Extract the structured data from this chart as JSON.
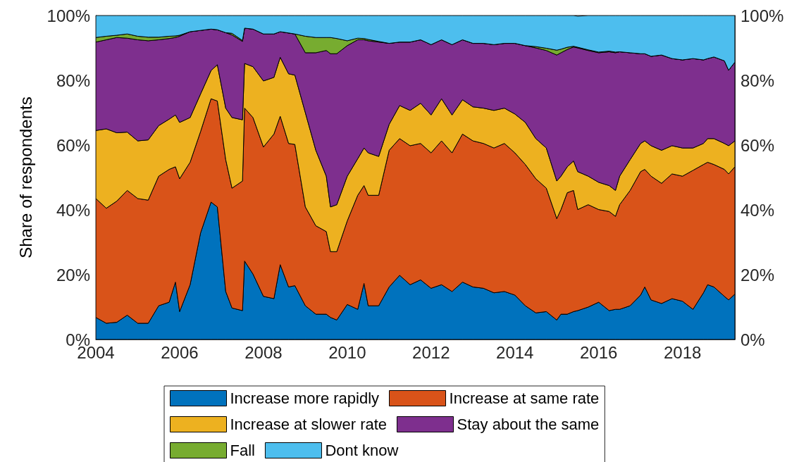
{
  "chart_data": {
    "type": "area",
    "stacked": true,
    "ylabel": "Share of respondents",
    "x": [
      2004.0,
      2004.25,
      2004.5,
      2004.75,
      2005.0,
      2005.25,
      2005.5,
      2005.75,
      2005.9,
      2006.0,
      2006.25,
      2006.5,
      2006.75,
      2006.9,
      2007.1,
      2007.25,
      2007.5,
      2007.55,
      2007.75,
      2008.0,
      2008.25,
      2008.4,
      2008.6,
      2008.75,
      2009.0,
      2009.25,
      2009.5,
      2009.6,
      2009.75,
      2010.0,
      2010.25,
      2010.4,
      2010.5,
      2010.75,
      2011.0,
      2011.25,
      2011.5,
      2011.75,
      2012.0,
      2012.25,
      2012.5,
      2012.75,
      2013.0,
      2013.25,
      2013.5,
      2013.75,
      2014.0,
      2014.25,
      2014.5,
      2014.75,
      2015.0,
      2015.1,
      2015.25,
      2015.4,
      2015.5,
      2015.75,
      2016.0,
      2016.25,
      2016.4,
      2016.5,
      2016.75,
      2017.0,
      2017.1,
      2017.25,
      2017.5,
      2017.75,
      2018.0,
      2018.25,
      2018.5,
      2018.6,
      2018.75,
      2019.0,
      2019.1,
      2019.25
    ],
    "series": [
      {
        "name": "Increase more rapidly",
        "color": "#0072bd",
        "values": [
          6.8,
          5,
          5.3,
          7.5,
          5,
          5,
          10.4,
          11.5,
          17.7,
          8.6,
          16.9,
          32.9,
          42.4,
          40.9,
          14.8,
          9.7,
          8.9,
          24.2,
          20.2,
          13.3,
          12.6,
          23.1,
          16.2,
          16.6,
          10.4,
          7.8,
          7.8,
          6.8,
          6,
          10.8,
          9.3,
          17.3,
          10.4,
          10.4,
          16.2,
          19.8,
          16.9,
          18.4,
          15.8,
          16.9,
          14.8,
          17.7,
          16.2,
          15.8,
          14.4,
          14.8,
          13.7,
          10.4,
          8.2,
          8.6,
          6,
          7.8,
          7.8,
          8.6,
          8.9,
          10,
          11.5,
          8.9,
          9.3,
          9.3,
          10.4,
          13.7,
          16.2,
          12.2,
          11.1,
          12.6,
          11.8,
          9.3,
          14.4,
          16.9,
          16.2,
          13.3,
          12.2,
          14
        ]
      },
      {
        "name": "Increase at same rate",
        "color": "#d95319",
        "values": [
          36.7,
          35.5,
          37.4,
          38.5,
          38.5,
          38,
          40,
          41,
          35.6,
          41,
          37.8,
          31.3,
          31.9,
          32.7,
          40.7,
          37,
          40,
          47.2,
          48.3,
          46.1,
          50.8,
          45.8,
          44.3,
          43.6,
          30.5,
          27.3,
          25.5,
          20.3,
          21.1,
          25.8,
          35.2,
          30.2,
          34.1,
          34.1,
          42.2,
          42.2,
          42.9,
          42.1,
          41.8,
          44.4,
          42.8,
          45.7,
          45.1,
          44.7,
          44.7,
          45.7,
          43.9,
          43.6,
          41.4,
          38.1,
          31.3,
          32.3,
          37.5,
          37.4,
          31.2,
          31.6,
          28.6,
          30.6,
          28.7,
          32.3,
          35.6,
          38.1,
          36.3,
          38.2,
          37.1,
          38.5,
          38.6,
          42.9,
          39.6,
          37.8,
          37.8,
          39.2,
          38.9,
          39.3
        ]
      },
      {
        "name": "Increase at slower rate",
        "color": "#edb120",
        "values": [
          21,
          24.5,
          21.1,
          18,
          17.8,
          18.6,
          15.6,
          15.5,
          16,
          17.4,
          13.8,
          11.6,
          8.7,
          11.2,
          15.9,
          21.8,
          18.9,
          13.8,
          15.7,
          20.4,
          17.5,
          18.2,
          21.5,
          21.4,
          29.1,
          23.3,
          17.1,
          13.8,
          14.5,
          13.8,
          11.3,
          11.6,
          13.1,
          12,
          8,
          10.2,
          10.9,
          12.4,
          11.7,
          13,
          11.7,
          10.6,
          10.5,
          10.9,
          11.6,
          10.9,
          12,
          13,
          12.4,
          12.4,
          11.6,
          10.3,
          8,
          9.1,
          11.7,
          8.8,
          8.4,
          8,
          8,
          8.8,
          9.5,
          8.7,
          8.8,
          9.4,
          10.2,
          8.7,
          8.7,
          6.9,
          6.5,
          7.3,
          8,
          8,
          8.7,
          8
        ]
      },
      {
        "name": "Stay about the same",
        "color": "#7e2f8e",
        "values": [
          27.3,
          27.5,
          29.4,
          29,
          31.2,
          30.6,
          26.5,
          24.9,
          23.9,
          26.6,
          26.5,
          19.6,
          12.8,
          10.8,
          23.3,
          25.5,
          24.2,
          10.9,
          11.6,
          14.5,
          13.4,
          7.9,
          12.6,
          12.7,
          18.5,
          30.1,
          38.8,
          47.3,
          46.6,
          40.3,
          36.7,
          33.4,
          34.6,
          35.3,
          25,
          19.6,
          21.1,
          19.6,
          21.7,
          18.2,
          21.7,
          18.5,
          19.6,
          20,
          20.3,
          20,
          21.8,
          23.7,
          28,
          30.1,
          38.9,
          38.1,
          36.2,
          35.2,
          38.2,
          38.8,
          40,
          41.3,
          42.5,
          38.4,
          33,
          27.7,
          26.9,
          27.6,
          29.4,
          26.9,
          27.2,
          27.6,
          25.8,
          24.7,
          25.2,
          25.5,
          23.3,
          24.3
        ]
      },
      {
        "name": "Fall",
        "color": "#77ac30",
        "values": [
          1.4,
          1.1,
          0.7,
          1.3,
          1.1,
          1.1,
          0.8,
          0.7,
          0.5,
          0.3,
          0,
          0,
          0,
          0,
          0,
          0.5,
          0.3,
          0,
          0,
          0,
          0,
          0,
          0,
          0,
          5.1,
          4.7,
          4,
          5,
          4.7,
          1.5,
          0.5,
          0.4,
          0.4,
          0.2,
          0,
          0,
          0,
          0,
          0,
          0,
          0,
          0,
          0,
          0,
          0,
          0,
          0,
          0,
          0.4,
          0.7,
          1.5,
          1.1,
          0.7,
          0.2,
          0.2,
          0.2,
          0.2,
          0.2,
          0.2,
          0,
          0,
          0,
          0,
          0,
          0,
          0,
          0,
          0,
          0,
          0,
          0,
          0,
          0,
          0
        ]
      },
      {
        "name": "Dont know",
        "color": "#4dbeee",
        "values": [
          6.8,
          6.4,
          6.1,
          5.7,
          6.4,
          6.7,
          6.7,
          6.4,
          6.3,
          6.1,
          5,
          4.6,
          4.2,
          4.4,
          5.3,
          5.5,
          7.7,
          3.9,
          4.2,
          5.7,
          5.7,
          5,
          5.4,
          5.7,
          6.4,
          6.8,
          6.8,
          6.8,
          7.1,
          7.8,
          7,
          7.1,
          7.4,
          8,
          8.6,
          8.2,
          8.2,
          7.5,
          9,
          7.5,
          9,
          7.5,
          8.6,
          8.6,
          9,
          8.6,
          8.6,
          9.3,
          9.6,
          10.1,
          10.7,
          10.4,
          9.8,
          9.5,
          9.6,
          10.6,
          11.3,
          11,
          11.3,
          11.2,
          11.5,
          11.8,
          11.8,
          12.6,
          12.2,
          13.3,
          13.7,
          13.3,
          13.7,
          13.3,
          12.8,
          14,
          16.9,
          14.4
        ]
      }
    ],
    "xlim": [
      2004,
      2019.25
    ],
    "xticks": [
      2004,
      2006,
      2008,
      2010,
      2012,
      2014,
      2016,
      2018
    ],
    "ylim": [
      0,
      100
    ],
    "yticks": [
      {
        "value": 0,
        "label": "0%"
      },
      {
        "value": 20,
        "label": "20%"
      },
      {
        "value": 40,
        "label": "40%"
      },
      {
        "value": 60,
        "label": "60%"
      },
      {
        "value": 80,
        "label": "80%"
      },
      {
        "value": 100,
        "label": "100%"
      }
    ],
    "y2lim": [
      0,
      100
    ],
    "y2ticks": [
      {
        "value": 0,
        "label": "0%"
      },
      {
        "value": 20,
        "label": "20%"
      },
      {
        "value": 40,
        "label": "40%"
      },
      {
        "value": 60,
        "label": "60%"
      },
      {
        "value": 80,
        "label": "80%"
      },
      {
        "value": 100,
        "label": "100%"
      }
    ],
    "legend": "bottom",
    "grid": false
  }
}
